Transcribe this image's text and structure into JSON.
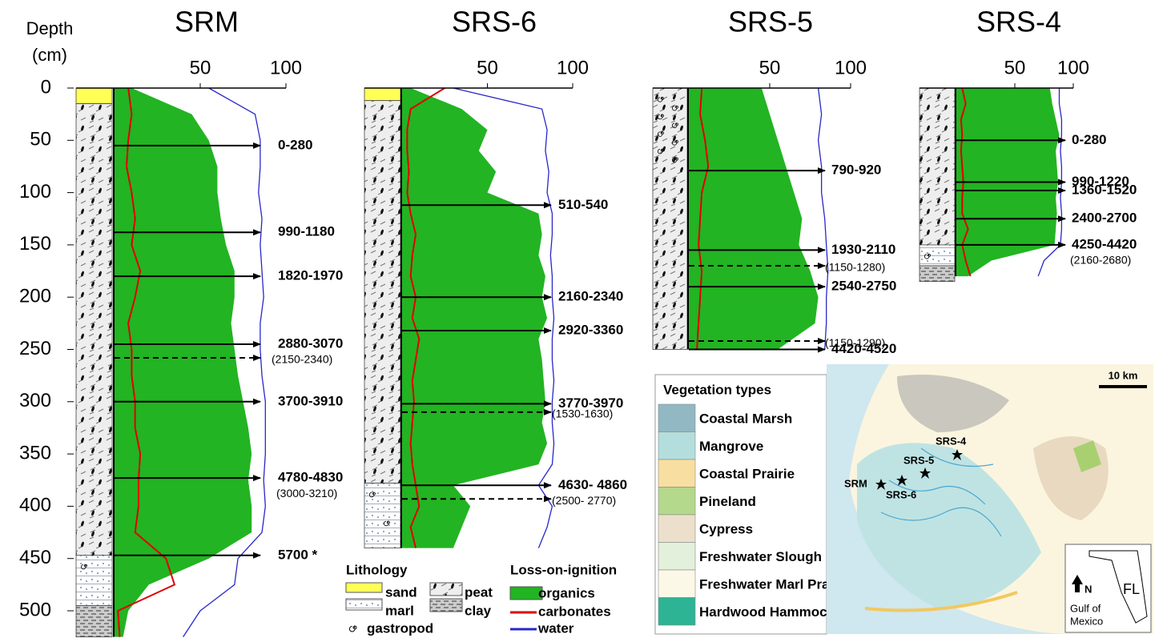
{
  "depth_axis": {
    "title_line1": "Depth",
    "title_line2": "(cm)",
    "ticks": [
      0,
      50,
      100,
      150,
      200,
      250,
      300,
      350,
      400,
      450,
      500
    ]
  },
  "colors": {
    "organics": "#22b422",
    "carbonates": "#e00000",
    "water": "#2828c8",
    "sand": "#ffff55"
  },
  "cores": [
    {
      "name": "SRM",
      "xlim": [
        0,
        100
      ],
      "xticks": [
        50,
        100
      ],
      "depths": [
        0,
        25,
        50,
        75,
        100,
        125,
        150,
        175,
        200,
        225,
        250,
        275,
        300,
        325,
        350,
        375,
        400,
        425,
        450,
        475,
        500,
        525
      ],
      "organics": [
        10,
        45,
        55,
        60,
        60,
        62,
        65,
        70,
        70,
        68,
        70,
        72,
        75,
        78,
        80,
        78,
        80,
        80,
        55,
        20,
        8,
        5
      ],
      "carbonates": [
        8,
        10,
        8,
        7,
        10,
        12,
        10,
        15,
        12,
        8,
        10,
        10,
        12,
        12,
        15,
        14,
        14,
        12,
        30,
        35,
        2,
        3
      ],
      "water": [
        55,
        82,
        85,
        85,
        84,
        86,
        85,
        86,
        87,
        85,
        85,
        86,
        88,
        88,
        88,
        87,
        88,
        86,
        72,
        70,
        50,
        40
      ],
      "lithology": [
        {
          "type": "sand",
          "top": 0,
          "bottom": 15
        },
        {
          "type": "peat",
          "top": 15,
          "bottom": 447
        },
        {
          "type": "marl",
          "top": 447,
          "bottom": 495
        },
        {
          "type": "clay",
          "top": 495,
          "bottom": 525
        }
      ],
      "dates": [
        {
          "depth": 55,
          "label": "0-280"
        },
        {
          "depth": 138,
          "label": "990-1180"
        },
        {
          "depth": 180,
          "label": "1820-1970"
        },
        {
          "depth": 245,
          "label": "2880-3070"
        },
        {
          "depth": 258,
          "label": "(2150-2340)",
          "dashed": true
        },
        {
          "depth": 300,
          "label": "3700-3910"
        },
        {
          "depth": 373,
          "label": "4780-4830",
          "note": "(3000-3210)"
        },
        {
          "depth": 447,
          "label": "5700 *"
        }
      ]
    },
    {
      "name": "SRS-6",
      "xlim": [
        0,
        100
      ],
      "xticks": [
        50,
        100
      ],
      "depths": [
        0,
        20,
        40,
        60,
        80,
        100,
        120,
        140,
        160,
        180,
        200,
        220,
        240,
        260,
        280,
        300,
        320,
        340,
        360,
        380,
        400,
        420,
        440
      ],
      "organics": [
        5,
        35,
        50,
        45,
        55,
        50,
        80,
        82,
        80,
        84,
        82,
        85,
        80,
        82,
        83,
        84,
        82,
        85,
        80,
        30,
        40,
        35,
        30
      ],
      "carbonates": [
        25,
        5,
        3,
        3,
        4,
        3,
        5,
        8,
        6,
        5,
        8,
        6,
        10,
        8,
        6,
        7,
        6,
        5,
        6,
        8,
        10,
        5,
        8
      ],
      "water": [
        30,
        82,
        85,
        84,
        86,
        85,
        88,
        88,
        87,
        88,
        88,
        89,
        88,
        88,
        89,
        88,
        88,
        89,
        88,
        80,
        88,
        85,
        80
      ],
      "lithology": [
        {
          "type": "sand",
          "top": 0,
          "bottom": 12
        },
        {
          "type": "peat",
          "top": 12,
          "bottom": 378
        },
        {
          "type": "marl",
          "top": 378,
          "bottom": 440
        }
      ],
      "dates": [
        {
          "depth": 112,
          "label": "510-540"
        },
        {
          "depth": 200,
          "label": "2160-2340"
        },
        {
          "depth": 232,
          "label": "2920-3360"
        },
        {
          "depth": 302,
          "label": "3770-3970"
        },
        {
          "depth": 310,
          "label": "(1530-1630)",
          "dashed": true
        },
        {
          "depth": 380,
          "label": "4630- 4860"
        },
        {
          "depth": 393,
          "label": "(2500- 2770)",
          "dashed": true
        }
      ]
    },
    {
      "name": "SRS-5",
      "xlim": [
        0,
        100
      ],
      "xticks": [
        50,
        100
      ],
      "depths": [
        0,
        25,
        50,
        75,
        100,
        125,
        150,
        175,
        200,
        225,
        250
      ],
      "organics": [
        45,
        50,
        55,
        60,
        65,
        70,
        68,
        75,
        80,
        78,
        55
      ],
      "carbonates": [
        8,
        7,
        10,
        12,
        8,
        7,
        6,
        8,
        7,
        6,
        5
      ],
      "water": [
        80,
        82,
        80,
        82,
        82,
        84,
        85,
        86,
        85,
        85,
        84
      ],
      "lithology": [
        {
          "type": "peat",
          "top": 0,
          "bottom": 250
        }
      ],
      "dates": [
        {
          "depth": 79,
          "label": "790-920"
        },
        {
          "depth": 155,
          "label": "1930-2110"
        },
        {
          "depth": 170,
          "label": "(1150-1280)",
          "dashed": true
        },
        {
          "depth": 190,
          "label": "2540-2750"
        },
        {
          "depth": 242,
          "label": "(1150-1290)",
          "dashed": true
        },
        {
          "depth": 250,
          "label": "4420-4520"
        }
      ]
    },
    {
      "name": "SRS-4",
      "xlim": [
        0,
        100
      ],
      "xticks": [
        50,
        100
      ],
      "depths": [
        0,
        15,
        30,
        45,
        60,
        75,
        90,
        105,
        120,
        135,
        150,
        165,
        180
      ],
      "organics": [
        80,
        82,
        85,
        88,
        85,
        86,
        87,
        85,
        86,
        85,
        84,
        30,
        10
      ],
      "carbonates": [
        5,
        8,
        4,
        5,
        4,
        5,
        6,
        5,
        5,
        10,
        5,
        8,
        12
      ],
      "water": [
        88,
        88,
        90,
        90,
        89,
        90,
        90,
        89,
        90,
        90,
        89,
        75,
        70
      ],
      "lithology": [
        {
          "type": "peat",
          "top": 0,
          "bottom": 150
        },
        {
          "type": "marl",
          "top": 150,
          "bottom": 170
        },
        {
          "type": "clay",
          "top": 170,
          "bottom": 185
        }
      ],
      "dates": [
        {
          "depth": 50,
          "label": "0-280"
        },
        {
          "depth": 90,
          "label": "990-1220"
        },
        {
          "depth": 98,
          "label": "1360-1520"
        },
        {
          "depth": 125,
          "label": "2400-2700"
        },
        {
          "depth": 150,
          "label": "4250-4420",
          "note": "(2160-2680)"
        }
      ]
    }
  ],
  "legend": {
    "lithology_title": "Lithology",
    "sand": "sand",
    "marl": "marl",
    "gastropod": "gastropod",
    "peat": "peat",
    "clay": "clay",
    "loi_title": "Loss-on-ignition",
    "organics": "organics",
    "carbonates": "carbonates",
    "water": "water"
  },
  "vegetation": {
    "title": "Vegetation types",
    "items": [
      {
        "name": "Coastal Marsh",
        "color": "#92b8c4"
      },
      {
        "name": "Mangrove",
        "color": "#b4dedd"
      },
      {
        "name": "Coastal Prairie",
        "color": "#f8dea0"
      },
      {
        "name": "Pineland",
        "color": "#b4d88c"
      },
      {
        "name": "Cypress",
        "color": "#ece0cc"
      },
      {
        "name": "Freshwater Slough",
        "color": "#e2f0dc"
      },
      {
        "name": "Freshwater Marl Prairie",
        "color": "#fcf8e8"
      },
      {
        "name": "Hardwood Hammock",
        "color": "#2db495"
      }
    ]
  },
  "map": {
    "scale": "10 km",
    "north": "N",
    "gulf_line1": "Gulf of",
    "gulf_line2": "Mexico",
    "state": "FL",
    "sites": [
      "SRS-4",
      "SRS-5",
      "SRM",
      "SRS-6"
    ]
  }
}
